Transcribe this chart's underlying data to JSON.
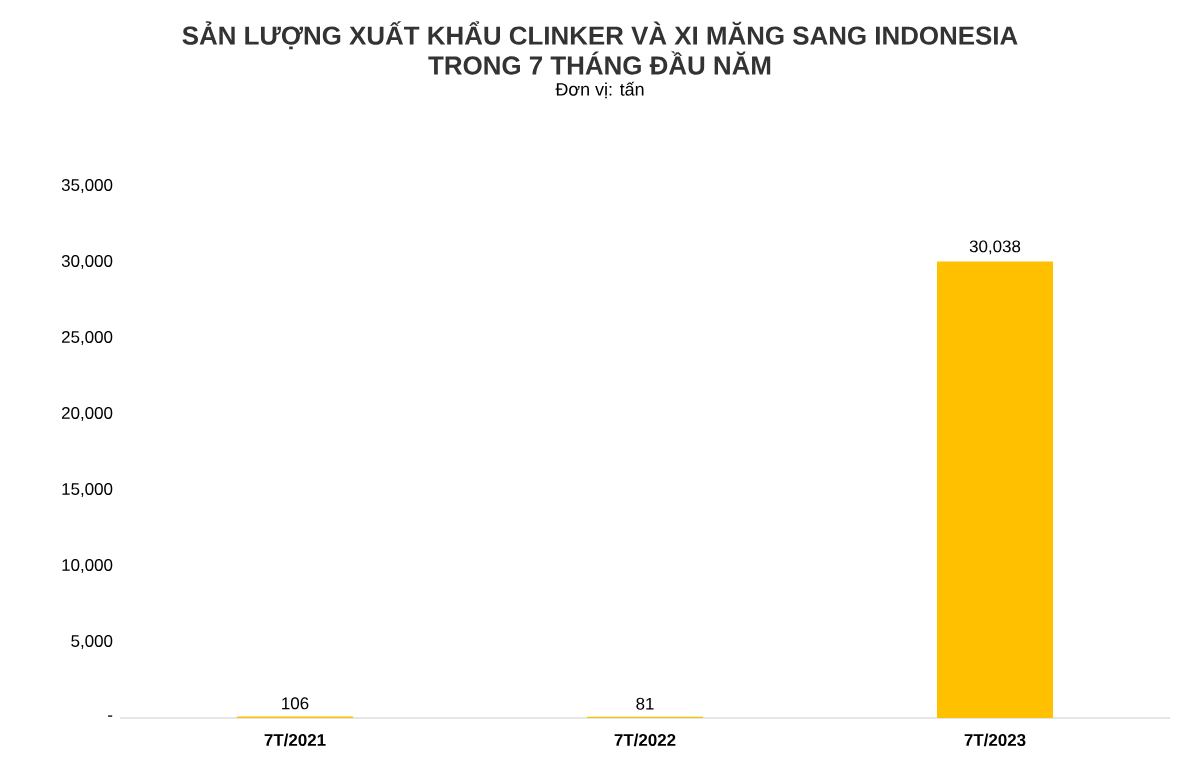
{
  "chart_data": {
    "type": "bar",
    "title": "SẢN LƯỢNG XUẤT KHẨU CLINKER VÀ XI MĂNG SANG INDONESIA\nTRONG 7 THÁNG ĐẦU NĂM",
    "subtitle": "Đơn vị: tấn",
    "categories": [
      "7T/2021",
      "7T/2022",
      "7T/2023"
    ],
    "values": [
      106,
      81,
      30038
    ],
    "color": "#ffc000",
    "ylim": [
      0,
      35000
    ],
    "yticks": [
      {
        "value": 0,
        "label": "-"
      },
      {
        "value": 5000,
        "label": "5,000"
      },
      {
        "value": 10000,
        "label": "10,000"
      },
      {
        "value": 15000,
        "label": "15,000"
      },
      {
        "value": 20000,
        "label": "20,000"
      },
      {
        "value": 25000,
        "label": "25,000"
      },
      {
        "value": 30000,
        "label": "30,000"
      },
      {
        "value": 35000,
        "label": "35,000"
      }
    ],
    "value_labels": [
      "106",
      "81",
      "30,038"
    ]
  }
}
